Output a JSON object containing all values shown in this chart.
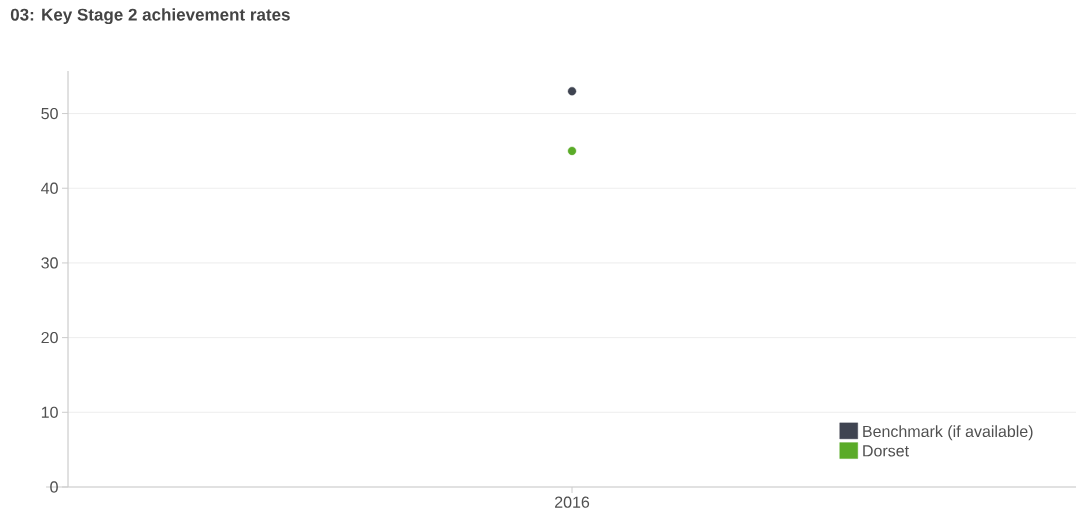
{
  "chart_data": {
    "type": "scatter",
    "title": "03: Key Stage 2 achievement rates",
    "categories": [
      "2016"
    ],
    "series": [
      {
        "name": "Benchmark (if available)",
        "color": "#3f4451",
        "values": [
          53
        ]
      },
      {
        "name": "Dorset",
        "color": "#5aab28",
        "values": [
          45
        ]
      }
    ],
    "ylim": [
      0,
      55.7
    ],
    "yticks": [
      0,
      10,
      20,
      30,
      40,
      50
    ],
    "grid": "y",
    "legend": "bottom right",
    "marker": "circle"
  }
}
